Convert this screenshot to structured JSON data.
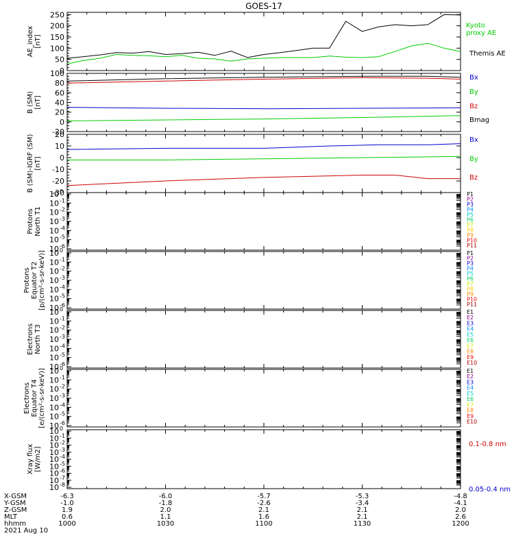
{
  "title": "GOES-17",
  "chart_data": [
    {
      "type": "line",
      "ylabel_lines": [
        "AE_index",
        "[nT]"
      ],
      "yticks": [
        "0",
        "50",
        "100",
        "150",
        "200",
        "250"
      ],
      "ylim": [
        0,
        260
      ],
      "legend": [
        {
          "label_lines": [
            "Kyoto",
            "proxy AE"
          ],
          "color": "#00cc00"
        },
        {
          "label_lines": [
            "Themis AE"
          ],
          "color": "#000000"
        }
      ],
      "series": [
        {
          "name": "Themis AE",
          "color": "#000000",
          "x": [
            0,
            5,
            10,
            15,
            20,
            25,
            30,
            35,
            40,
            45,
            50,
            55,
            60,
            65,
            70,
            75,
            80,
            85,
            90,
            95,
            100,
            105,
            110,
            115,
            120
          ],
          "y": [
            55,
            62,
            70,
            80,
            78,
            85,
            72,
            76,
            82,
            68,
            87,
            58,
            72,
            80,
            90,
            100,
            100,
            220,
            175,
            195,
            205,
            200,
            205,
            250,
            248
          ]
        },
        {
          "name": "Kyoto proxy AE",
          "color": "#00cc00",
          "x": [
            0,
            5,
            10,
            15,
            20,
            25,
            30,
            35,
            40,
            45,
            50,
            55,
            60,
            65,
            70,
            75,
            80,
            85,
            90,
            95,
            100,
            105,
            110,
            115,
            120
          ],
          "y": [
            30,
            45,
            55,
            72,
            68,
            66,
            62,
            68,
            55,
            52,
            42,
            52,
            55,
            58,
            58,
            58,
            65,
            60,
            58,
            62,
            85,
            110,
            122,
            100,
            85
          ]
        }
      ]
    },
    {
      "type": "line",
      "ylabel_lines": [
        "B (SM)",
        "[nT]"
      ],
      "yticks": [
        "-20",
        "0",
        "20",
        "40",
        "60",
        "80",
        "100"
      ],
      "ylim": [
        -20,
        100
      ],
      "legend": [
        {
          "label_lines": [
            "Bx"
          ],
          "color": "#0000cc"
        },
        {
          "label_lines": [
            "By"
          ],
          "color": "#00cc00"
        },
        {
          "label_lines": [
            "Bz"
          ],
          "color": "#cc0000"
        },
        {
          "label_lines": [
            "Bmag"
          ],
          "color": "#000000"
        }
      ],
      "series": [
        {
          "name": "Bmag",
          "color": "#000000",
          "x": [
            0,
            30,
            60,
            90,
            110,
            120
          ],
          "y": [
            84,
            89,
            92,
            94,
            94,
            92
          ]
        },
        {
          "name": "Bx",
          "color": "#0000cc",
          "x": [
            0,
            30,
            60,
            90,
            120
          ],
          "y": [
            30,
            28,
            27,
            28,
            29
          ]
        },
        {
          "name": "By",
          "color": "#00cc00",
          "x": [
            0,
            30,
            60,
            90,
            120
          ],
          "y": [
            2,
            4,
            6,
            9,
            13
          ]
        },
        {
          "name": "Bz",
          "color": "#cc0000",
          "x": [
            0,
            30,
            60,
            90,
            110,
            120
          ],
          "y": [
            80,
            84,
            88,
            91,
            90,
            88
          ]
        }
      ]
    },
    {
      "type": "line",
      "ylabel_lines": [
        "B (SM)-IGRF (SM)",
        "[nT]"
      ],
      "yticks": [
        "-30",
        "-20",
        "-10",
        "0",
        "10",
        "20"
      ],
      "ylim": [
        -30,
        20
      ],
      "legend": [
        {
          "label_lines": [
            "Bx"
          ],
          "color": "#0000cc"
        },
        {
          "label_lines": [
            "By"
          ],
          "color": "#00cc00"
        },
        {
          "label_lines": [
            "Bz"
          ],
          "color": "#cc0000"
        }
      ],
      "series": [
        {
          "name": "Bx",
          "color": "#0000cc",
          "x": [
            0,
            30,
            60,
            80,
            95,
            110,
            120
          ],
          "y": [
            7,
            8,
            8,
            10,
            11,
            11,
            12
          ]
        },
        {
          "name": "By",
          "color": "#00cc00",
          "x": [
            0,
            30,
            60,
            90,
            120
          ],
          "y": [
            -2,
            -2,
            -1,
            0,
            1
          ]
        },
        {
          "name": "Bz",
          "color": "#cc0000",
          "x": [
            0,
            30,
            60,
            90,
            100,
            110,
            120
          ],
          "y": [
            -24,
            -20,
            -17,
            -15,
            -15,
            -18,
            -18
          ]
        }
      ]
    },
    {
      "type": "line",
      "ylabel_lines": [
        "Protons",
        "North T1"
      ],
      "log_exponents": [
        "0",
        "-1",
        "-2",
        "-3",
        "-4",
        "-5",
        "-6"
      ],
      "legend": [
        {
          "label_lines": [
            "P1"
          ],
          "color": "#000000"
        },
        {
          "label_lines": [
            "P2"
          ],
          "color": "#880088"
        },
        {
          "label_lines": [
            "P3"
          ],
          "color": "#0000cc"
        },
        {
          "label_lines": [
            "P4"
          ],
          "color": "#0088ff"
        },
        {
          "label_lines": [
            "P5"
          ],
          "color": "#00cccc"
        },
        {
          "label_lines": [
            "P6"
          ],
          "color": "#00cc66"
        },
        {
          "label_lines": [
            "P7"
          ],
          "color": "#ccee00"
        },
        {
          "label_lines": [
            "P8"
          ],
          "color": "#ffcc00"
        },
        {
          "label_lines": [
            "P9"
          ],
          "color": "#ff8800"
        },
        {
          "label_lines": [
            "P10"
          ],
          "color": "#ee0000"
        },
        {
          "label_lines": [
            "P11"
          ],
          "color": "#aa0000"
        }
      ],
      "series": []
    },
    {
      "type": "line",
      "ylabel_lines": [
        "Protons",
        "Equator T2",
        "[p/(cm²-s-sr-keV)]"
      ],
      "log_exponents": [
        "0",
        "-1",
        "-2",
        "-3",
        "-4",
        "-5",
        "-6"
      ],
      "legend": [
        {
          "label_lines": [
            "P1"
          ],
          "color": "#000000"
        },
        {
          "label_lines": [
            "P2"
          ],
          "color": "#880088"
        },
        {
          "label_lines": [
            "P3"
          ],
          "color": "#0000cc"
        },
        {
          "label_lines": [
            "P4"
          ],
          "color": "#0088ff"
        },
        {
          "label_lines": [
            "P5"
          ],
          "color": "#00cccc"
        },
        {
          "label_lines": [
            "P6"
          ],
          "color": "#00cc66"
        },
        {
          "label_lines": [
            "P7"
          ],
          "color": "#ccee00"
        },
        {
          "label_lines": [
            "P8"
          ],
          "color": "#ffcc00"
        },
        {
          "label_lines": [
            "P9"
          ],
          "color": "#ff8800"
        },
        {
          "label_lines": [
            "P10"
          ],
          "color": "#ee0000"
        },
        {
          "label_lines": [
            "P11"
          ],
          "color": "#aa0000"
        }
      ],
      "series": []
    },
    {
      "type": "line",
      "ylabel_lines": [
        "Electrons",
        "North T3"
      ],
      "log_exponents": [
        "0",
        "-1",
        "-2",
        "-3",
        "-4",
        "-5",
        "-6"
      ],
      "legend": [
        {
          "label_lines": [
            "E1"
          ],
          "color": "#000000"
        },
        {
          "label_lines": [
            "E2"
          ],
          "color": "#880088"
        },
        {
          "label_lines": [
            "E3"
          ],
          "color": "#0000cc"
        },
        {
          "label_lines": [
            "E4"
          ],
          "color": "#0088ff"
        },
        {
          "label_lines": [
            "E5"
          ],
          "color": "#00cccc"
        },
        {
          "label_lines": [
            "E6"
          ],
          "color": "#00cc66"
        },
        {
          "label_lines": [
            "E7"
          ],
          "color": "#ccee00"
        },
        {
          "label_lines": [
            "E8"
          ],
          "color": "#ff8800"
        },
        {
          "label_lines": [
            "E9"
          ],
          "color": "#ee0000"
        },
        {
          "label_lines": [
            "E10"
          ],
          "color": "#aa0000"
        }
      ],
      "series": []
    },
    {
      "type": "line",
      "ylabel_lines": [
        "Electrons",
        "Equator T4",
        "[e/(cm²-s-sr-keV)]"
      ],
      "log_exponents": [
        "0",
        "-1",
        "-2",
        "-3",
        "-4",
        "-5",
        "-6"
      ],
      "legend": [
        {
          "label_lines": [
            "E1"
          ],
          "color": "#000000"
        },
        {
          "label_lines": [
            "E2"
          ],
          "color": "#880088"
        },
        {
          "label_lines": [
            "E3"
          ],
          "color": "#0000cc"
        },
        {
          "label_lines": [
            "E4"
          ],
          "color": "#0088ff"
        },
        {
          "label_lines": [
            "E5"
          ],
          "color": "#00cccc"
        },
        {
          "label_lines": [
            "E6"
          ],
          "color": "#00cc66"
        },
        {
          "label_lines": [
            "E7"
          ],
          "color": "#ccee00"
        },
        {
          "label_lines": [
            "E8"
          ],
          "color": "#ff8800"
        },
        {
          "label_lines": [
            "E9"
          ],
          "color": "#ee0000"
        },
        {
          "label_lines": [
            "E10"
          ],
          "color": "#aa0000"
        }
      ],
      "series": []
    },
    {
      "type": "line",
      "ylabel_lines": [
        "Xray flux",
        "[W/m2]"
      ],
      "log_exponents": [
        "0",
        "-1",
        "-2",
        "-3",
        "-4",
        "-5",
        "-6",
        "-7",
        "-8"
      ],
      "legend": [
        {
          "label_lines": [
            "0.1-0.8 nm"
          ],
          "color": "#cc0000"
        },
        {
          "label_lines": [
            "0.05-0.4 nm"
          ],
          "color": "#0000cc"
        }
      ],
      "series": []
    }
  ],
  "xaxis": {
    "tick_positions": [
      0,
      30,
      60,
      90,
      120
    ],
    "rows": [
      {
        "label": "X-GSM",
        "values": [
          "-6.3",
          "-6.0",
          "-5.7",
          "-5.3",
          "-4.8"
        ]
      },
      {
        "label": "Y-GSM",
        "values": [
          "-1.0",
          "-1.8",
          "-2.6",
          "-3.4",
          "-4.1"
        ]
      },
      {
        "label": "Z-GSM",
        "values": [
          "1.9",
          "2.0",
          "2.1",
          "2.1",
          "2.0"
        ]
      },
      {
        "label": "MLT",
        "values": [
          "0.6",
          "1.1",
          "1.6",
          "2.1",
          "2.6"
        ]
      },
      {
        "label": "hhmm",
        "values": [
          "1000",
          "1030",
          "1100",
          "1130",
          "1200"
        ]
      }
    ],
    "date": "2021 Aug 10"
  }
}
